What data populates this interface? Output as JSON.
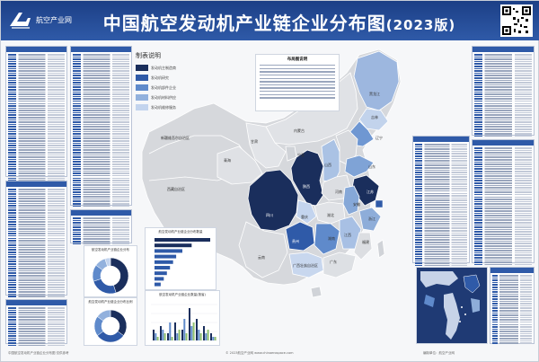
{
  "header": {
    "logo_text": "航空产业网",
    "title": "中国航空发动机产业链企业分布图",
    "year": "(2023版)"
  },
  "legend": {
    "title": "制表说明",
    "items": [
      {
        "label": "发动机主制造商",
        "color": "#1a2e5c"
      },
      {
        "label": "发动机研究",
        "color": "#2f5aa8"
      },
      {
        "label": "发动机部件企业",
        "color": "#5f8acb"
      },
      {
        "label": "发动机材料供应",
        "color": "#92b1dd"
      },
      {
        "label": "发动机维修服务",
        "color": "#c3d4ee"
      }
    ]
  },
  "notes": {
    "title": "布局图说明"
  },
  "provinces": {
    "xinjiang": "新疆维吾尔自治区",
    "xizang": "西藏自治区",
    "qinghai": "青海",
    "gansu": "甘肃",
    "neimenggu": "内蒙古",
    "heilongjiang": "黑龙江",
    "jilin": "吉林",
    "liaoning": "辽宁",
    "shaanxi": "陕西",
    "sichuan": "四川",
    "guizhou": "贵州",
    "hunan": "湖南",
    "shandong": "山东",
    "jiangsu": "江苏",
    "anhui": "安徽",
    "shanxi": "山西",
    "hubei": "湖北",
    "jiangxi": "江西",
    "guangxi": "广西壮族自治区",
    "guangdong": "广东",
    "fujian": "福建",
    "zhejiang": "浙江",
    "yunnan": "云南",
    "henan": "河南",
    "ningxia": "宁夏",
    "chongqing": "重庆"
  },
  "charts": {
    "donut1_title": "航空发动机产业链企业分布",
    "bar_title": "航空发动机产业链企业分布数量",
    "bar2_title": "航空发动机产业链企业数量(按省)",
    "donut2_title": "航空发动机产业链企业分布比例"
  },
  "chart_data": [
    {
      "type": "pie",
      "values": [
        45,
        25,
        15,
        10,
        5
      ]
    },
    {
      "type": "bar",
      "values": [
        18,
        12,
        9,
        7,
        6,
        5,
        4,
        3,
        2
      ]
    },
    {
      "type": "bar",
      "series": [
        {
          "values": [
            3,
            4,
            2,
            5,
            3,
            9,
            6,
            4,
            2
          ]
        },
        {
          "values": [
            2,
            3,
            5,
            2,
            6,
            4,
            3,
            2,
            1
          ]
        },
        {
          "values": [
            1,
            2,
            1,
            3,
            2,
            5,
            2,
            3,
            1
          ]
        }
      ]
    },
    {
      "type": "pie",
      "values": [
        35,
        30,
        20,
        15
      ]
    }
  ],
  "footer": {
    "left": "中国航空发动机产业链企业分布图  仅供参考",
    "center": "© 2023航空产业网 www.chinaerospace.com",
    "right": "编制单位：航空产业网"
  }
}
